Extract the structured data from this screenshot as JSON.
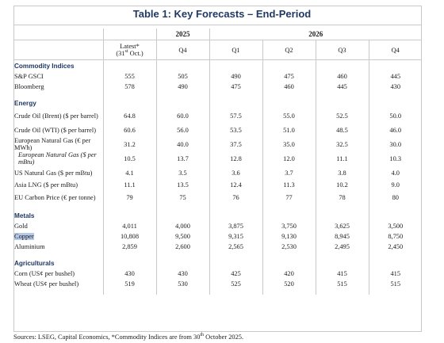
{
  "title": "Table 1: Key Forecasts – End-Period",
  "header": {
    "years": [
      "2025",
      "2026"
    ],
    "latest_label": "Latest*",
    "latest_date": "(31st Oct.)",
    "quarters": [
      "Q4",
      "Q1",
      "Q2",
      "Q3",
      "Q4"
    ]
  },
  "sections": [
    {
      "name": "Commodity Indices",
      "rows": [
        {
          "label": "S&P GSCI",
          "values": [
            "555",
            "505",
            "490",
            "475",
            "460",
            "445"
          ]
        },
        {
          "label": "Bloomberg",
          "values": [
            "578",
            "490",
            "475",
            "460",
            "445",
            "430"
          ]
        }
      ]
    },
    {
      "name": "Energy",
      "rows": [
        {
          "label": "Crude Oil (Brent) ($ per barrel)",
          "values": [
            "64.8",
            "60.0",
            "57.5",
            "55.0",
            "52.5",
            "50.0"
          ]
        },
        {
          "label": "Crude Oil (WTI) ($ per barrel)",
          "values": [
            "60.6",
            "56.0",
            "53.5",
            "51.0",
            "48.5",
            "46.0"
          ]
        },
        {
          "label": "European Natural Gas (€ per MWh)",
          "values": [
            "31.2",
            "40.0",
            "37.5",
            "35.0",
            "32.5",
            "30.0"
          ]
        },
        {
          "label": "European Natural Gas ($ per mBtu)",
          "values": [
            "10.5",
            "13.7",
            "12.8",
            "12.0",
            "11.1",
            "10.3"
          ],
          "italic": true
        },
        {
          "label": "US Natural Gas ($ per mBtu)",
          "values": [
            "4.1",
            "3.5",
            "3.6",
            "3.7",
            "3.8",
            "4.0"
          ]
        },
        {
          "label": "Asia LNG ($ per mBtu)",
          "values": [
            "11.1",
            "13.5",
            "12.4",
            "11.3",
            "10.2",
            "9.0"
          ]
        },
        {
          "label": "EU Carbon Price (€ per tonne)",
          "values": [
            "79",
            "75",
            "76",
            "77",
            "78",
            "80"
          ]
        }
      ]
    },
    {
      "name": "Metals",
      "rows": [
        {
          "label": "Gold",
          "values": [
            "4,011",
            "4,000",
            "3,875",
            "3,750",
            "3,625",
            "3,500"
          ]
        },
        {
          "label": "Copper",
          "values": [
            "10,808",
            "9,500",
            "9,315",
            "9,130",
            "8,945",
            "8,750"
          ],
          "highlight": true
        },
        {
          "label": "Aluminium",
          "values": [
            "2,859",
            "2,600",
            "2,565",
            "2,530",
            "2,495",
            "2,450"
          ]
        }
      ]
    },
    {
      "name": "Agriculturals",
      "rows": [
        {
          "label": "Corn (US¢ per bushel)",
          "values": [
            "430",
            "430",
            "425",
            "420",
            "415",
            "415"
          ]
        },
        {
          "label": "Wheat (US¢ per bushel)",
          "values": [
            "519",
            "530",
            "525",
            "520",
            "515",
            "515"
          ]
        }
      ]
    }
  ],
  "source": "Sources: LSEG, Capital Economics, *Commodity Indices are from 30th October 2025."
}
